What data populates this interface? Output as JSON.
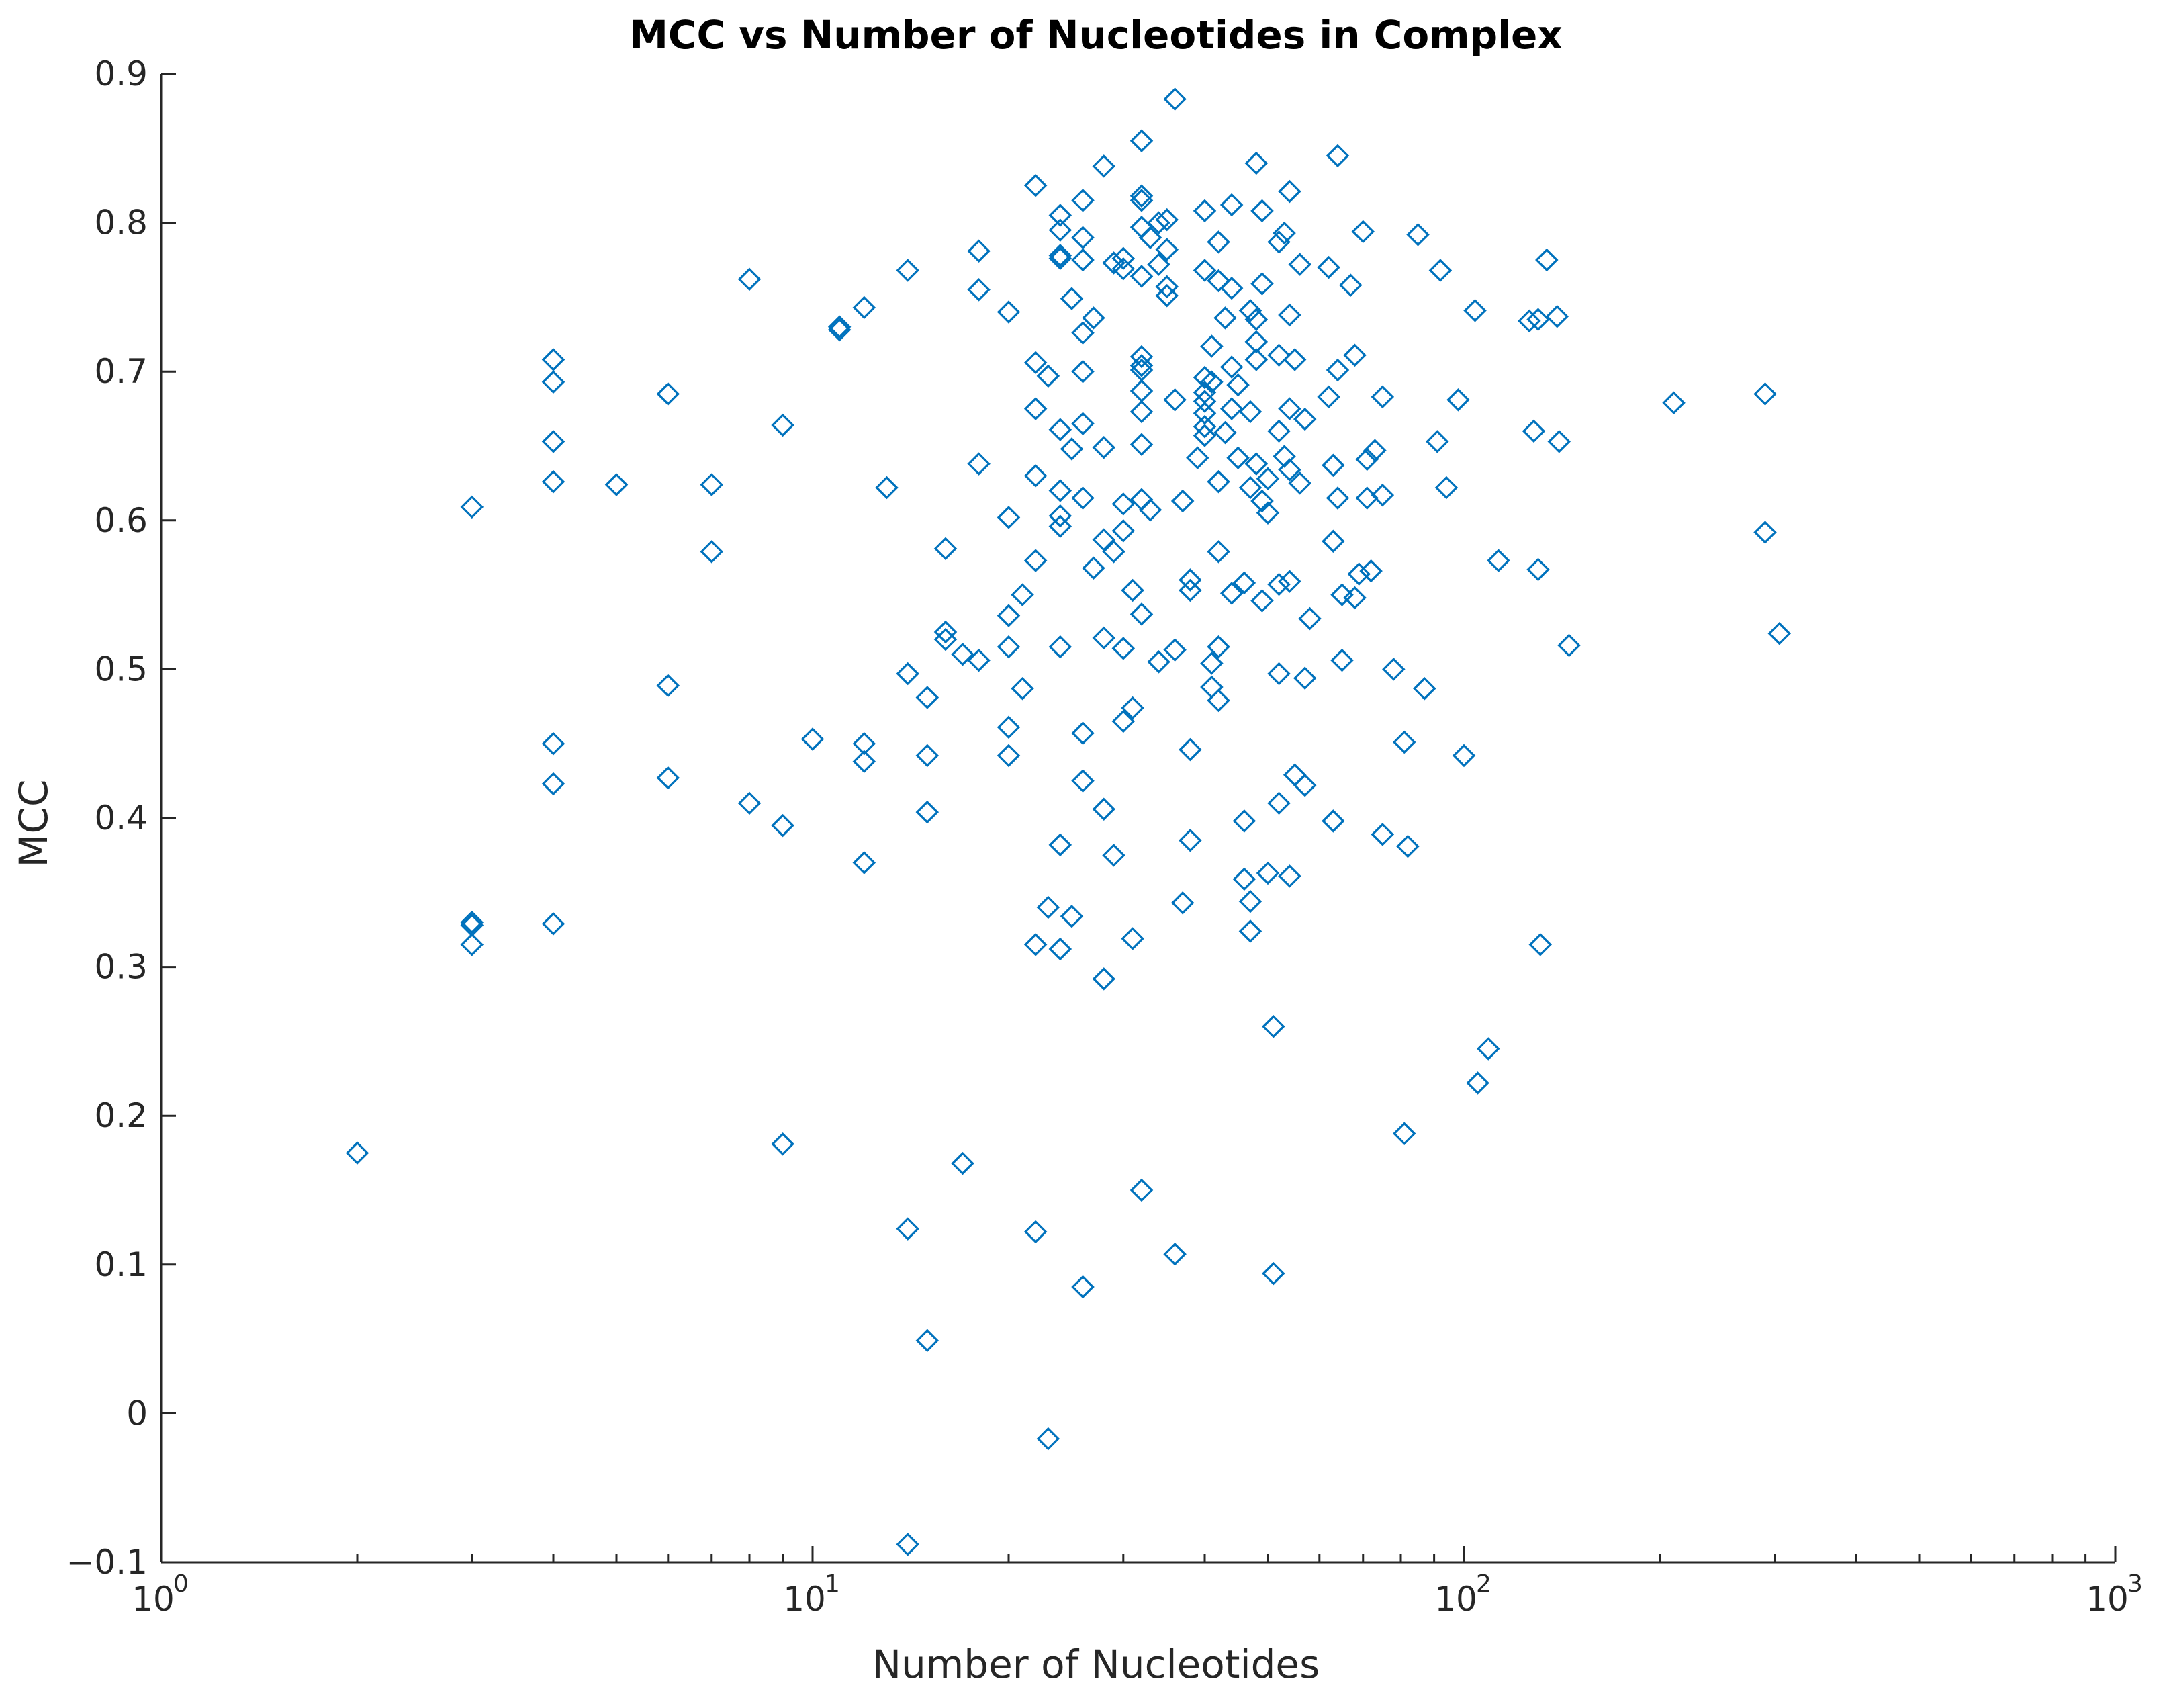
{
  "chart_data": {
    "type": "scatter",
    "title": "MCC vs Number of Nucleotides in Complex",
    "xlabel": "Number of Nucleotides",
    "ylabel": "MCC",
    "xscale": "log",
    "xlim": [
      1,
      1000
    ],
    "ylim": [
      -0.1,
      0.9
    ],
    "xticks": [
      {
        "value": 1,
        "base": "10",
        "exp": "0"
      },
      {
        "value": 10,
        "base": "10",
        "exp": "1"
      },
      {
        "value": 100,
        "base": "10",
        "exp": "2"
      },
      {
        "value": 1000,
        "base": "10",
        "exp": "3"
      }
    ],
    "yticks": [
      {
        "value": -0.1,
        "label": "−0.1"
      },
      {
        "value": 0,
        "label": "0"
      },
      {
        "value": 0.1,
        "label": "0.1"
      },
      {
        "value": 0.2,
        "label": "0.2"
      },
      {
        "value": 0.3,
        "label": "0.3"
      },
      {
        "value": 0.4,
        "label": "0.4"
      },
      {
        "value": 0.5,
        "label": "0.5"
      },
      {
        "value": 0.6,
        "label": "0.6"
      },
      {
        "value": 0.7,
        "label": "0.7"
      },
      {
        "value": 0.8,
        "label": "0.8"
      },
      {
        "value": 0.9,
        "label": "0.9"
      }
    ],
    "grid": false,
    "marker": "diamond-open",
    "color": "#0072BD",
    "series": [
      {
        "name": "MCC",
        "points": [
          [
            2,
            0.175
          ],
          [
            3,
            0.609
          ],
          [
            3,
            0.33
          ],
          [
            3,
            0.328
          ],
          [
            3,
            0.315
          ],
          [
            4,
            0.708
          ],
          [
            4,
            0.693
          ],
          [
            4,
            0.653
          ],
          [
            4,
            0.626
          ],
          [
            4,
            0.45
          ],
          [
            4,
            0.423
          ],
          [
            4,
            0.329
          ],
          [
            5,
            0.624
          ],
          [
            6,
            0.685
          ],
          [
            6,
            0.489
          ],
          [
            6,
            0.427
          ],
          [
            7,
            0.624
          ],
          [
            7,
            0.579
          ],
          [
            8,
            0.762
          ],
          [
            8,
            0.41
          ],
          [
            9,
            0.664
          ],
          [
            9,
            0.395
          ],
          [
            9,
            0.181
          ],
          [
            10,
            0.453
          ],
          [
            11,
            0.73
          ],
          [
            11,
            0.728
          ],
          [
            12,
            0.743
          ],
          [
            12,
            0.45
          ],
          [
            12,
            0.438
          ],
          [
            12,
            0.37
          ],
          [
            13,
            0.622
          ],
          [
            14,
            0.768
          ],
          [
            14,
            0.497
          ],
          [
            14,
            0.124
          ],
          [
            14,
            -0.088
          ],
          [
            15,
            0.481
          ],
          [
            15,
            0.442
          ],
          [
            15,
            0.404
          ],
          [
            15,
            0.049
          ],
          [
            16,
            0.581
          ],
          [
            16,
            0.525
          ],
          [
            16,
            0.52
          ],
          [
            17,
            0.51
          ],
          [
            17,
            0.168
          ],
          [
            18,
            0.781
          ],
          [
            18,
            0.755
          ],
          [
            18,
            0.638
          ],
          [
            18,
            0.506
          ],
          [
            20,
            0.74
          ],
          [
            20,
            0.602
          ],
          [
            20,
            0.536
          ],
          [
            20,
            0.515
          ],
          [
            20,
            0.461
          ],
          [
            20,
            0.442
          ],
          [
            21,
            0.55
          ],
          [
            21,
            0.487
          ],
          [
            22,
            0.825
          ],
          [
            22,
            0.706
          ],
          [
            22,
            0.675
          ],
          [
            22,
            0.63
          ],
          [
            22,
            0.573
          ],
          [
            22,
            0.315
          ],
          [
            22,
            0.122
          ],
          [
            23,
            0.697
          ],
          [
            23,
            0.34
          ],
          [
            23,
            -0.017
          ],
          [
            24,
            0.805
          ],
          [
            24,
            0.795
          ],
          [
            24,
            0.778
          ],
          [
            24,
            0.776
          ],
          [
            24,
            0.661
          ],
          [
            24,
            0.62
          ],
          [
            24,
            0.603
          ],
          [
            24,
            0.596
          ],
          [
            24,
            0.515
          ],
          [
            24,
            0.382
          ],
          [
            24,
            0.312
          ],
          [
            25,
            0.749
          ],
          [
            25,
            0.648
          ],
          [
            25,
            0.334
          ],
          [
            26,
            0.815
          ],
          [
            26,
            0.79
          ],
          [
            26,
            0.775
          ],
          [
            26,
            0.726
          ],
          [
            26,
            0.7
          ],
          [
            26,
            0.665
          ],
          [
            26,
            0.615
          ],
          [
            26,
            0.457
          ],
          [
            26,
            0.425
          ],
          [
            26,
            0.085
          ],
          [
            27,
            0.736
          ],
          [
            27,
            0.568
          ],
          [
            28,
            0.838
          ],
          [
            28,
            0.649
          ],
          [
            28,
            0.587
          ],
          [
            28,
            0.521
          ],
          [
            28,
            0.406
          ],
          [
            28,
            0.292
          ],
          [
            29,
            0.773
          ],
          [
            29,
            0.579
          ],
          [
            29,
            0.375
          ],
          [
            30,
            0.776
          ],
          [
            30,
            0.769
          ],
          [
            30,
            0.611
          ],
          [
            30,
            0.593
          ],
          [
            30,
            0.514
          ],
          [
            30,
            0.465
          ],
          [
            31,
            0.553
          ],
          [
            31,
            0.474
          ],
          [
            31,
            0.319
          ],
          [
            32,
            0.855
          ],
          [
            32,
            0.818
          ],
          [
            32,
            0.815
          ],
          [
            32,
            0.797
          ],
          [
            32,
            0.764
          ],
          [
            32,
            0.71
          ],
          [
            32,
            0.704
          ],
          [
            32,
            0.701
          ],
          [
            32,
            0.687
          ],
          [
            32,
            0.673
          ],
          [
            32,
            0.651
          ],
          [
            32,
            0.614
          ],
          [
            32,
            0.537
          ],
          [
            32,
            0.15
          ],
          [
            33,
            0.79
          ],
          [
            33,
            0.607
          ],
          [
            34,
            0.8
          ],
          [
            34,
            0.772
          ],
          [
            34,
            0.505
          ],
          [
            35,
            0.802
          ],
          [
            35,
            0.782
          ],
          [
            35,
            0.757
          ],
          [
            35,
            0.751
          ],
          [
            36,
            0.883
          ],
          [
            36,
            0.681
          ],
          [
            36,
            0.513
          ],
          [
            36,
            0.107
          ],
          [
            37,
            0.613
          ],
          [
            37,
            0.343
          ],
          [
            38,
            0.56
          ],
          [
            38,
            0.553
          ],
          [
            38,
            0.446
          ],
          [
            38,
            0.385
          ],
          [
            39,
            0.642
          ],
          [
            40,
            0.808
          ],
          [
            40,
            0.768
          ],
          [
            40,
            0.696
          ],
          [
            40,
            0.686
          ],
          [
            40,
            0.68
          ],
          [
            40,
            0.672
          ],
          [
            40,
            0.663
          ],
          [
            40,
            0.657
          ],
          [
            41,
            0.717
          ],
          [
            41,
            0.693
          ],
          [
            41,
            0.488
          ],
          [
            41,
            0.504
          ],
          [
            42,
            0.787
          ],
          [
            42,
            0.761
          ],
          [
            42,
            0.626
          ],
          [
            42,
            0.579
          ],
          [
            42,
            0.515
          ],
          [
            42,
            0.479
          ],
          [
            43,
            0.736
          ],
          [
            43,
            0.659
          ],
          [
            44,
            0.812
          ],
          [
            44,
            0.756
          ],
          [
            44,
            0.703
          ],
          [
            44,
            0.675
          ],
          [
            44,
            0.551
          ],
          [
            45,
            0.691
          ],
          [
            45,
            0.642
          ],
          [
            46,
            0.558
          ],
          [
            46,
            0.398
          ],
          [
            46,
            0.359
          ],
          [
            47,
            0.741
          ],
          [
            47,
            0.673
          ],
          [
            47,
            0.622
          ],
          [
            47,
            0.344
          ],
          [
            47,
            0.324
          ],
          [
            48,
            0.84
          ],
          [
            48,
            0.735
          ],
          [
            48,
            0.72
          ],
          [
            48,
            0.708
          ],
          [
            48,
            0.638
          ],
          [
            49,
            0.808
          ],
          [
            49,
            0.759
          ],
          [
            49,
            0.613
          ],
          [
            49,
            0.546
          ],
          [
            50,
            0.605
          ],
          [
            50,
            0.628
          ],
          [
            50,
            0.363
          ],
          [
            51,
            0.26
          ],
          [
            51,
            0.094
          ],
          [
            52,
            0.787
          ],
          [
            52,
            0.711
          ],
          [
            52,
            0.66
          ],
          [
            52,
            0.557
          ],
          [
            52,
            0.497
          ],
          [
            52,
            0.41
          ],
          [
            53,
            0.793
          ],
          [
            53,
            0.643
          ],
          [
            54,
            0.821
          ],
          [
            54,
            0.738
          ],
          [
            54,
            0.675
          ],
          [
            54,
            0.634
          ],
          [
            54,
            0.559
          ],
          [
            54,
            0.361
          ],
          [
            55,
            0.708
          ],
          [
            55,
            0.429
          ],
          [
            56,
            0.772
          ],
          [
            56,
            0.625
          ],
          [
            57,
            0.668
          ],
          [
            57,
            0.494
          ],
          [
            57,
            0.422
          ],
          [
            58,
            0.534
          ],
          [
            62,
            0.77
          ],
          [
            62,
            0.683
          ],
          [
            63,
            0.637
          ],
          [
            63,
            0.586
          ],
          [
            63,
            0.398
          ],
          [
            64,
            0.845
          ],
          [
            64,
            0.701
          ],
          [
            64,
            0.615
          ],
          [
            65,
            0.55
          ],
          [
            65,
            0.506
          ],
          [
            67,
            0.758
          ],
          [
            68,
            0.711
          ],
          [
            68,
            0.548
          ],
          [
            69,
            0.564
          ],
          [
            70,
            0.794
          ],
          [
            71,
            0.641
          ],
          [
            71,
            0.615
          ],
          [
            72,
            0.566
          ],
          [
            73,
            0.647
          ],
          [
            75,
            0.683
          ],
          [
            75,
            0.617
          ],
          [
            75,
            0.389
          ],
          [
            78,
            0.5
          ],
          [
            81,
            0.451
          ],
          [
            81,
            0.188
          ],
          [
            82,
            0.381
          ],
          [
            85,
            0.792
          ],
          [
            87,
            0.487
          ],
          [
            91,
            0.653
          ],
          [
            92,
            0.768
          ],
          [
            94,
            0.622
          ],
          [
            98,
            0.681
          ],
          [
            100,
            0.442
          ],
          [
            104,
            0.741
          ],
          [
            105,
            0.222
          ],
          [
            109,
            0.245
          ],
          [
            113,
            0.573
          ],
          [
            126,
            0.734
          ],
          [
            128,
            0.66
          ],
          [
            130,
            0.735
          ],
          [
            130,
            0.567
          ],
          [
            131,
            0.315
          ],
          [
            134,
            0.775
          ],
          [
            139,
            0.737
          ],
          [
            140,
            0.653
          ],
          [
            145,
            0.516
          ],
          [
            210,
            0.679
          ],
          [
            290,
            0.685
          ],
          [
            290,
            0.592
          ],
          [
            305,
            0.524
          ]
        ]
      }
    ]
  }
}
